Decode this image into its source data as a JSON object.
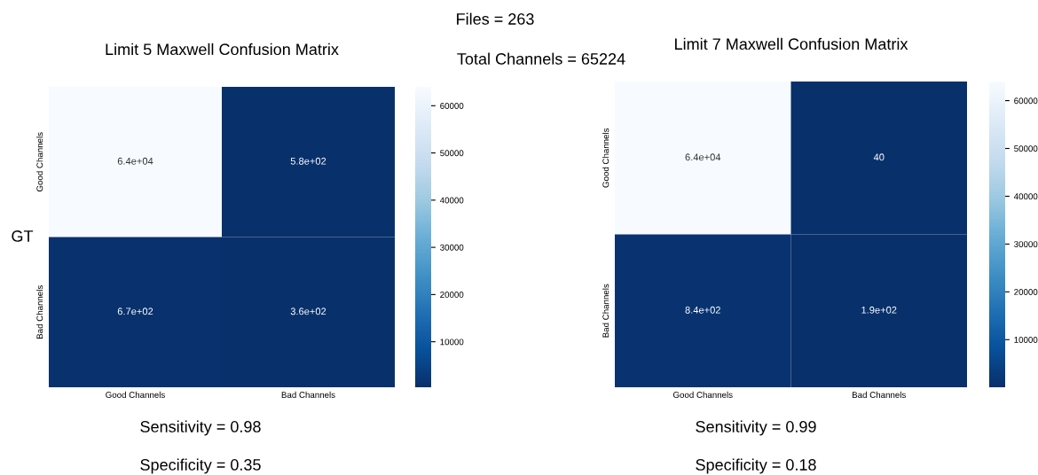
{
  "chart_data": [
    {
      "type": "heatmap",
      "title": "Limit 5 Maxwell Confusion Matrix",
      "categories": [
        "Good Channels",
        "Bad Channels"
      ],
      "y_categories": [
        "Good Channels",
        "Bad Channels"
      ],
      "cells": [
        [
          64000,
          580
        ],
        [
          670,
          360
        ]
      ],
      "cell_labels": [
        [
          "6.4e+04",
          "5.8e+02"
        ],
        [
          "6.7e+02",
          "3.6e+02"
        ]
      ],
      "clim": [
        360,
        64000
      ],
      "cticks": [
        10000,
        20000,
        30000,
        40000,
        50000,
        60000
      ],
      "annotations": [
        "Files = 263",
        "Total Channels = 65224",
        "GT",
        "Sensitivity = 0.98",
        "Specificity = 0.35"
      ]
    },
    {
      "type": "heatmap",
      "title": "Limit 7 Maxwell Confusion Matrix",
      "categories": [
        "Good Channels",
        "Bad Channels"
      ],
      "y_categories": [
        "Good Channels",
        "Bad Channels"
      ],
      "cells": [
        [
          64000,
          40
        ],
        [
          840,
          190
        ]
      ],
      "cell_labels": [
        [
          "6.4e+04",
          "40"
        ],
        [
          "8.4e+02",
          "1.9e+02"
        ]
      ],
      "clim": [
        40,
        64000
      ],
      "cticks": [
        10000,
        20000,
        30000,
        40000,
        50000,
        60000
      ],
      "annotations": [
        "Sensitivity = 0.99",
        "Specificity = 0.18"
      ]
    }
  ]
}
